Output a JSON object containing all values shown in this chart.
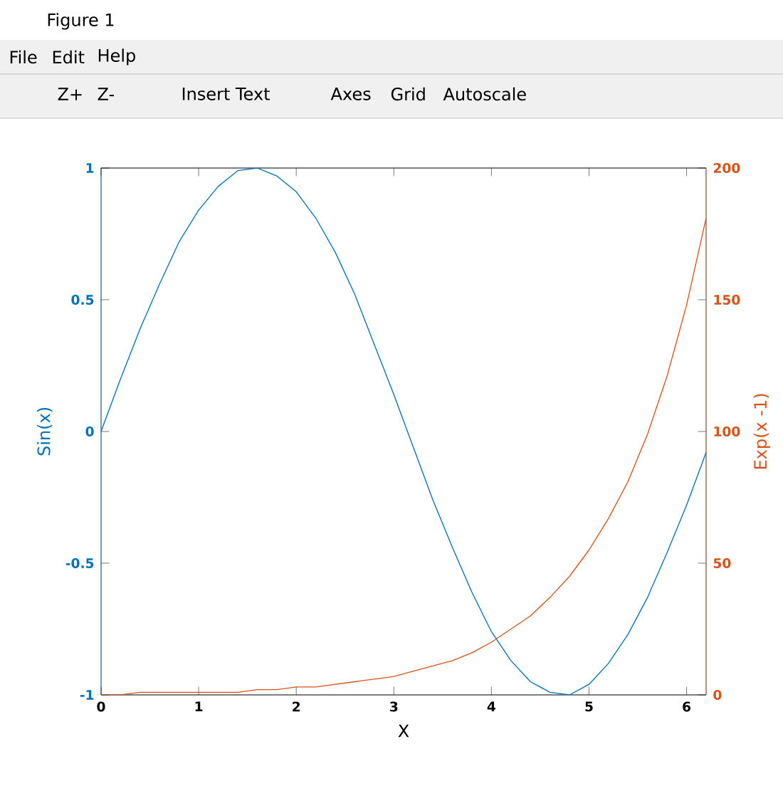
{
  "chart_data": {
    "type": "line",
    "title": "Figure 1",
    "annotations": [
      "File",
      "Edit",
      "Help",
      "Z+",
      "Z-",
      "Insert Text",
      "Axes",
      "Grid",
      "Autoscale"
    ],
    "xlabel": "X",
    "ylabel": "Sin(x)",
    "y2label": "Exp(x -1)",
    "x": [
      0,
      0.2,
      0.4,
      0.6,
      0.8,
      1.0,
      1.2,
      1.4,
      1.6,
      1.8,
      2.0,
      2.2,
      2.4,
      2.6,
      2.8,
      3.0,
      3.2,
      3.4,
      3.6,
      3.8,
      4.0,
      4.2,
      4.4,
      4.6,
      4.8,
      5.0,
      5.2,
      5.4,
      5.6,
      5.8,
      6.0,
      6.2
    ],
    "series": [
      {
        "color": "#0072bd",
        "values": [
          0,
          0.2,
          0.39,
          0.56,
          0.72,
          0.84,
          0.93,
          0.99,
          1.0,
          0.97,
          0.91,
          0.81,
          0.68,
          0.52,
          0.33,
          0.14,
          -0.06,
          -0.26,
          -0.44,
          -0.61,
          -0.76,
          -0.87,
          -0.95,
          -0.99,
          -1.0,
          -0.96,
          -0.88,
          -0.77,
          -0.63,
          -0.46,
          -0.28,
          -0.08
        ]
      },
      {
        "color": "#d95319",
        "axis": "y2",
        "values": [
          0,
          0,
          1,
          1,
          1,
          1,
          1,
          1,
          2,
          2,
          3,
          3,
          4,
          5,
          6,
          7,
          9,
          11,
          13,
          16,
          20,
          25,
          30,
          37,
          45,
          55,
          67,
          81,
          99,
          121,
          148,
          181
        ]
      }
    ],
    "xlim": [
      0,
      6.2
    ],
    "xticks": [
      0,
      1,
      2,
      3,
      4,
      5,
      6
    ],
    "ylim": [
      -1,
      1
    ],
    "yticks": [
      -1,
      -0.5,
      0,
      0.5,
      1
    ],
    "y2lim": [
      0,
      200
    ],
    "y2ticks": [
      0,
      50,
      100,
      150,
      200
    ],
    "grid": false,
    "line_style": "solid",
    "marker": "none"
  }
}
